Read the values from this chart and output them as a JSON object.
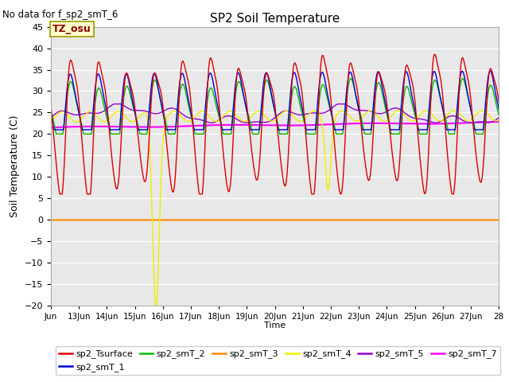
{
  "title": "SP2 Soil Temperature",
  "no_data_text": "No data for f_sp2_smT_6",
  "tz_label": "TZ_osu",
  "xlabel": "Time",
  "ylabel": "Soil Temperature (C)",
  "ylim": [
    -20,
    45
  ],
  "yticks": [
    -20,
    -15,
    -10,
    -5,
    0,
    5,
    10,
    15,
    20,
    25,
    30,
    35,
    40,
    45
  ],
  "x_start_day": 12,
  "x_end_day": 28,
  "num_points": 1600,
  "bg_color": "#e8e8e8",
  "fig_bg": "#ffffff",
  "lines": {
    "sp2_Tsurface": {
      "color": "#dd0000",
      "lw": 1.0
    },
    "sp2_smT_1": {
      "color": "#0000dd",
      "lw": 1.0
    },
    "sp2_smT_2": {
      "color": "#00bb00",
      "lw": 1.0
    },
    "sp2_smT_3": {
      "color": "#ff8800",
      "lw": 1.5
    },
    "sp2_smT_4": {
      "color": "#eeee00",
      "lw": 1.0
    },
    "sp2_smT_5": {
      "color": "#9900cc",
      "lw": 1.0
    },
    "sp2_smT_7": {
      "color": "#ff00ff",
      "lw": 1.5
    }
  },
  "legend_order": [
    "sp2_Tsurface",
    "sp2_smT_1",
    "sp2_smT_2",
    "sp2_smT_3",
    "sp2_smT_4",
    "sp2_smT_5",
    "sp2_smT_7"
  ],
  "xtick_days": [
    12,
    13,
    14,
    15,
    16,
    17,
    18,
    19,
    20,
    21,
    22,
    23,
    24,
    25,
    26,
    27,
    28
  ],
  "xtick_labels": [
    "Jun",
    "13Jun",
    "14Jun",
    "15Jun",
    "16Jun",
    "17Jun",
    "18Jun",
    "19Jun",
    "20Jun",
    "21Jun",
    "22Jun",
    "23Jun",
    "24Jun",
    "25Jun",
    "26Jun",
    "27Jun",
    "28"
  ]
}
